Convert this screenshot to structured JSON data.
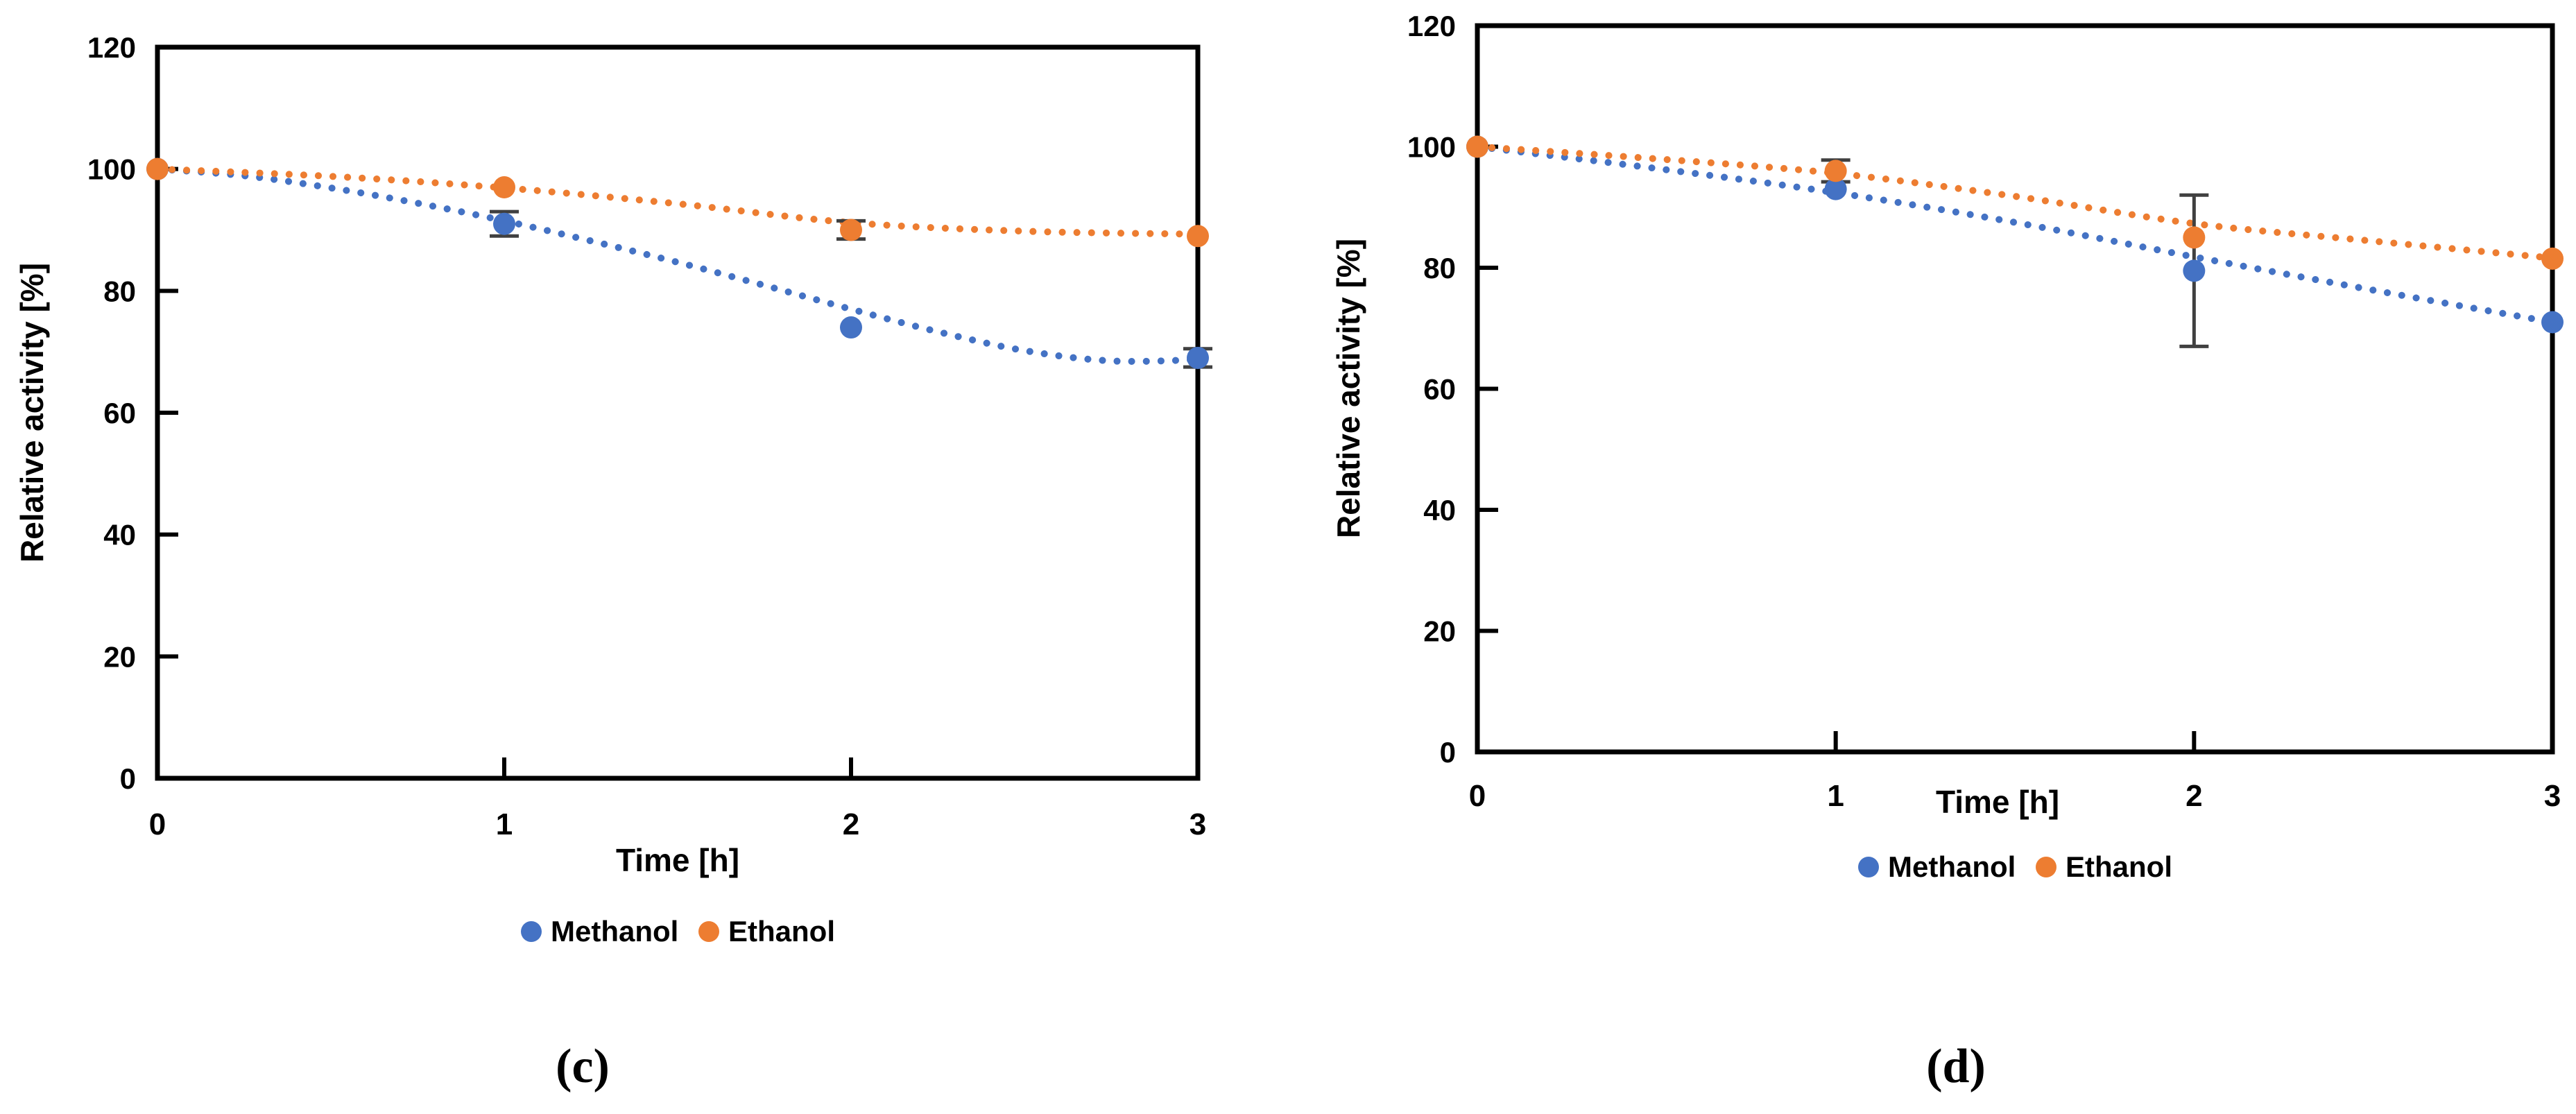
{
  "figure": {
    "background": "#ffffff",
    "description": "Two scatter panels of relative enzyme activity over time in methanol and ethanol",
    "panel_captions": [
      "(c)",
      "(d)"
    ]
  },
  "colors": {
    "methanol": "#4472C4",
    "ethanol": "#ED7D31",
    "axis": "#000000",
    "error_bar": "#404040"
  },
  "chart_data": [
    {
      "type": "scatter",
      "panel_label": "(c)",
      "title": "",
      "xlabel": "Time [h]",
      "ylabel": "Relative activity [%]",
      "xlim": [
        0,
        3
      ],
      "ylim": [
        0,
        120
      ],
      "xticks": [
        0,
        1,
        2,
        3
      ],
      "yticks": [
        0,
        20,
        40,
        60,
        80,
        100,
        120
      ],
      "grid": false,
      "legend_position": "bottom",
      "series": [
        {
          "name": "Methanol",
          "color": "#4472C4",
          "x": [
            0,
            1,
            2,
            3
          ],
          "y": [
            100,
            91,
            74,
            69
          ],
          "yerr": [
            0,
            2,
            0,
            1.5
          ],
          "trendline": {
            "style": "dotted",
            "points": [
              [
                0,
                100
              ],
              [
                0.25,
                98.9
              ],
              [
                0.5,
                96.9
              ],
              [
                0.75,
                94.4
              ],
              [
                1,
                91.5
              ],
              [
                1.25,
                88.2
              ],
              [
                1.5,
                84.7
              ],
              [
                1.75,
                80.9
              ],
              [
                2,
                77.0
              ],
              [
                2.25,
                73.3
              ],
              [
                2.5,
                70.2
              ],
              [
                2.75,
                68.5
              ],
              [
                3,
                68.7
              ]
            ]
          }
        },
        {
          "name": "Ethanol",
          "color": "#ED7D31",
          "x": [
            0,
            1,
            2,
            3
          ],
          "y": [
            100,
            97,
            90,
            89
          ],
          "yerr": [
            0,
            0,
            1.5,
            0
          ],
          "trendline": {
            "style": "dotted",
            "points": [
              [
                0,
                100
              ],
              [
                0.5,
                98.8
              ],
              [
                1,
                96.9
              ],
              [
                1.5,
                94.3
              ],
              [
                2,
                91.2
              ],
              [
                2.5,
                89.8
              ],
              [
                3,
                89.3
              ]
            ]
          }
        }
      ]
    },
    {
      "type": "scatter",
      "panel_label": "(d)",
      "title": "",
      "xlabel": "Time [h]",
      "ylabel": "Relative activity [%]",
      "xlim": [
        0,
        3
      ],
      "ylim": [
        0,
        120
      ],
      "xticks": [
        0,
        1,
        2,
        3
      ],
      "yticks": [
        0,
        20,
        40,
        60,
        80,
        100,
        120
      ],
      "grid": false,
      "legend_position": "bottom",
      "series": [
        {
          "name": "Methanol",
          "color": "#4472C4",
          "x": [
            0,
            1,
            2,
            3
          ],
          "y": [
            100,
            93,
            79.5,
            71
          ],
          "yerr": [
            0,
            0,
            12.5,
            0
          ],
          "trendline": {
            "style": "dotted",
            "points": [
              [
                0,
                100
              ],
              [
                0.5,
                96.4
              ],
              [
                1,
                92.4
              ],
              [
                1.5,
                87.5
              ],
              [
                2,
                81.8
              ],
              [
                2.5,
                76.3
              ],
              [
                3,
                71.0
              ]
            ]
          }
        },
        {
          "name": "Ethanol",
          "color": "#ED7D31",
          "x": [
            0,
            1,
            2,
            3
          ],
          "y": [
            100,
            96,
            85,
            81.5
          ],
          "yerr": [
            0,
            1.8,
            0,
            0
          ],
          "trendline": {
            "style": "dotted",
            "points": [
              [
                0,
                100
              ],
              [
                0.5,
                98.0
              ],
              [
                1,
                95.6
              ],
              [
                1.5,
                91.8
              ],
              [
                2,
                87.3
              ],
              [
                2.5,
                84.4
              ],
              [
                3,
                81.6
              ]
            ]
          }
        }
      ]
    }
  ]
}
